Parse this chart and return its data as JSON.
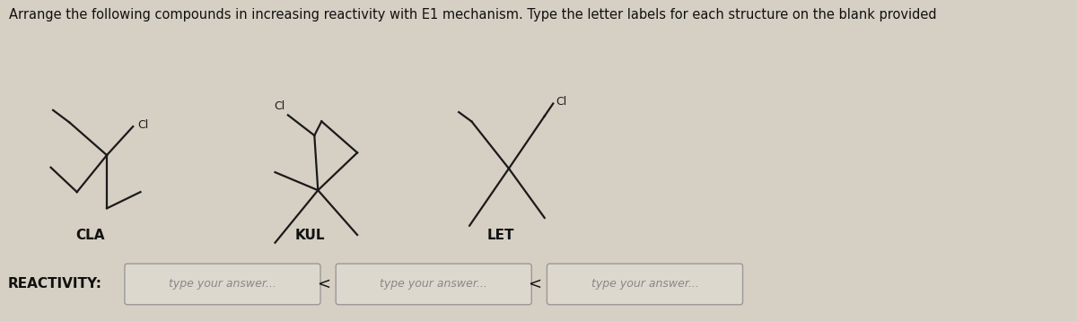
{
  "title": "Arrange the following compounds in increasing reactivity with E1 mechanism. Type the letter labels for each structure on the blank provided",
  "bg_color": "#d6cfc3",
  "title_color": "#111111",
  "title_fontsize": 10.5,
  "compound_labels": [
    "CLA",
    "KUL",
    "LET"
  ],
  "label_fontsize": 11,
  "label_color": "#111111",
  "ci_label": "Cl",
  "ci_fontsize": 9,
  "reactivity_label": "REACTIVITY:",
  "placeholder_text": "type your answer...",
  "less_than": "<",
  "box_color": "#ddd8ce",
  "box_edge_color": "#999999",
  "line_color": "#1a1a1a",
  "line_width": 1.6
}
